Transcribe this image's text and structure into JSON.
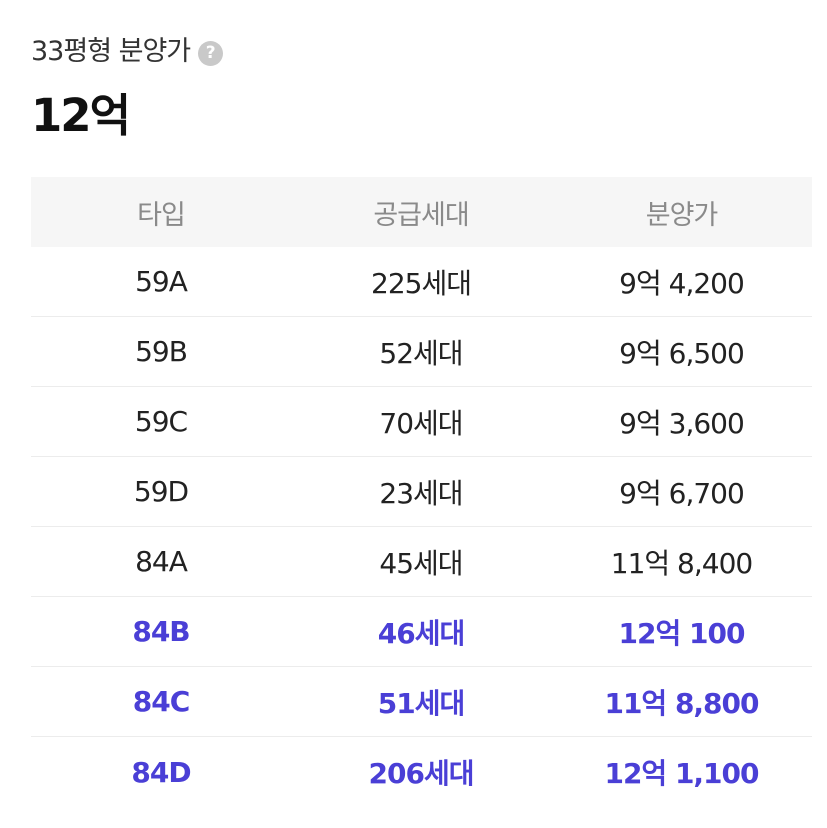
{
  "header": {
    "subtitle": "33평형 분양가",
    "help_icon_glyph": "?",
    "price": "12억"
  },
  "colors": {
    "highlight": "#4a3fd6",
    "header_bg": "#f6f6f6",
    "help_icon_bg": "#c9c9c9"
  },
  "table": {
    "columns": [
      "타입",
      "공급세대",
      "분양가"
    ],
    "rows": [
      {
        "type": "59A",
        "units": "225세대",
        "price": "9억 4,200",
        "highlight": false
      },
      {
        "type": "59B",
        "units": "52세대",
        "price": "9억 6,500",
        "highlight": false
      },
      {
        "type": "59C",
        "units": "70세대",
        "price": "9억 3,600",
        "highlight": false
      },
      {
        "type": "59D",
        "units": "23세대",
        "price": "9억 6,700",
        "highlight": false
      },
      {
        "type": "84A",
        "units": "45세대",
        "price": "11억 8,400",
        "highlight": false
      },
      {
        "type": "84B",
        "units": "46세대",
        "price": "12억 100",
        "highlight": true
      },
      {
        "type": "84C",
        "units": "51세대",
        "price": "11억 8,800",
        "highlight": true
      },
      {
        "type": "84D",
        "units": "206세대",
        "price": "12억 1,100",
        "highlight": true
      }
    ]
  }
}
